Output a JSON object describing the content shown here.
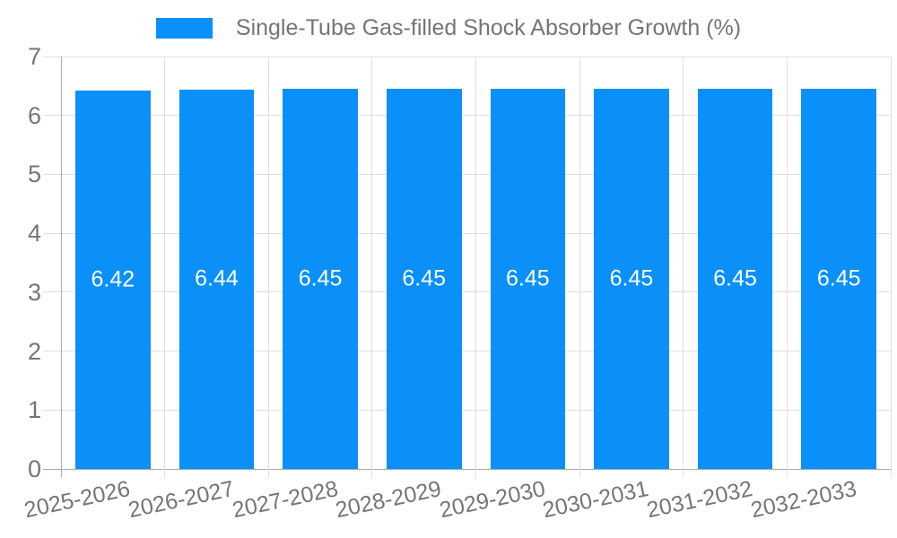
{
  "chart_data": {
    "type": "bar",
    "title": "Single-Tube Gas-filled Shock Absorber Growth (%)",
    "legend": [
      "Single-Tube Gas-filled Shock Absorber Growth (%)"
    ],
    "legend_position": "top-center",
    "categories": [
      "2025-2026",
      "2026-2027",
      "2027-2028",
      "2028-2029",
      "2029-2030",
      "2030-2031",
      "2031-2032",
      "2032-2033"
    ],
    "series": [
      {
        "name": "Single-Tube Gas-filled Shock Absorber Growth (%)",
        "values": [
          6.42,
          6.44,
          6.45,
          6.45,
          6.45,
          6.45,
          6.45,
          6.45
        ]
      }
    ],
    "value_labels_shown": true,
    "value_label_decimals": 2,
    "xlabel": "",
    "ylabel": "",
    "ylim": [
      0,
      7
    ],
    "yticks": [
      0,
      1,
      2,
      3,
      4,
      5,
      6,
      7
    ],
    "grid": true,
    "x_tick_rotation_deg": -12
  },
  "colors": {
    "bar": "#0a90f8",
    "axis_text": "#757575",
    "grid_line": "#e0e0e0",
    "axis_line": "#ababab",
    "value_label": "#ffffff",
    "background": "#ffffff"
  }
}
